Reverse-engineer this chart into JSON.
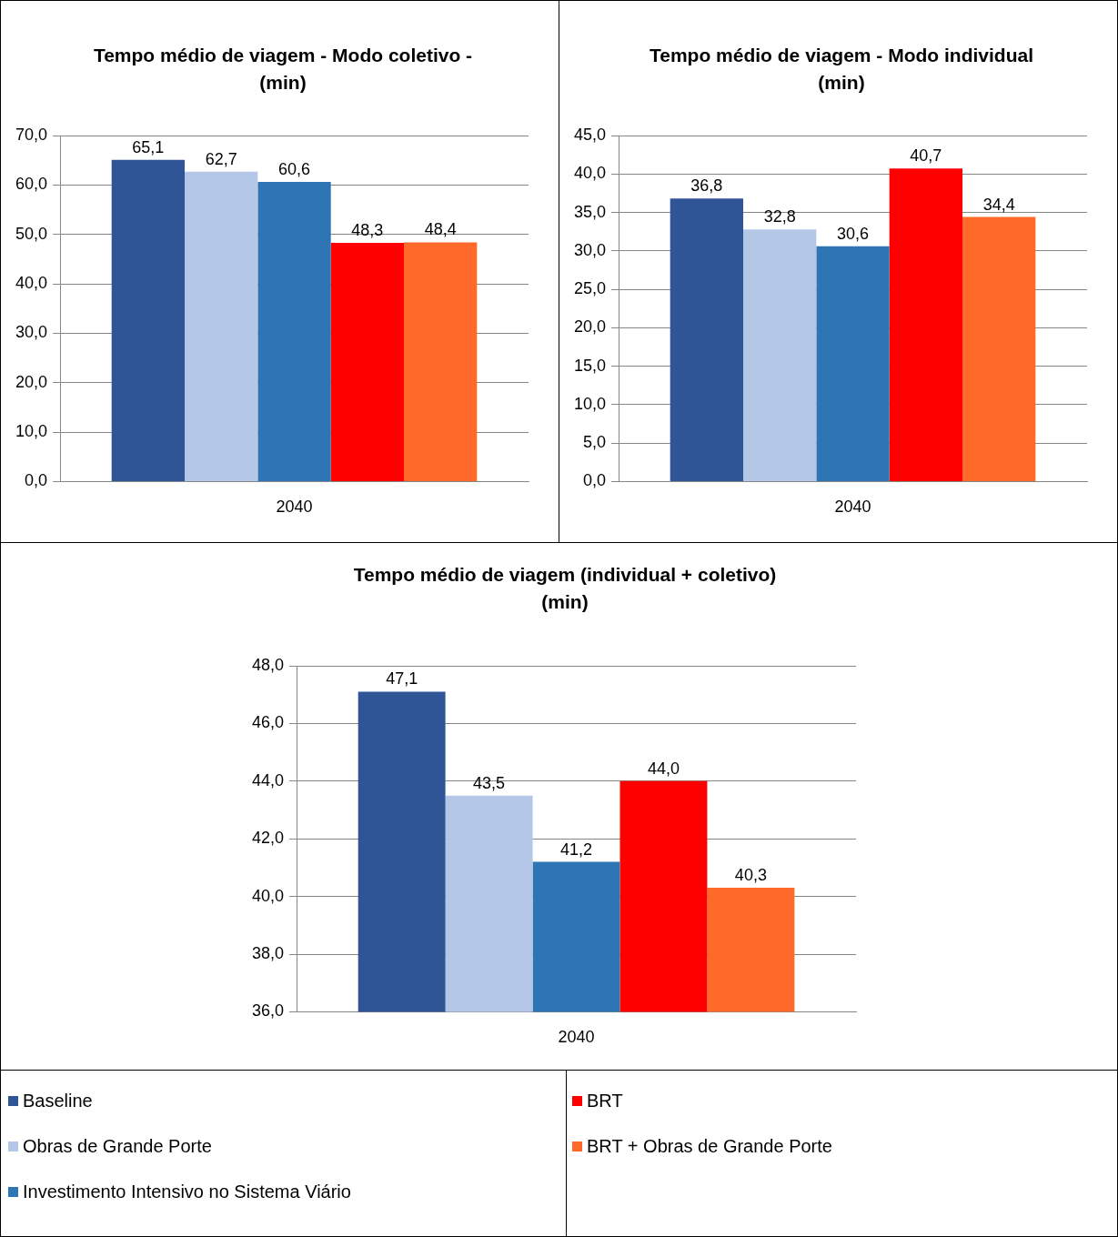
{
  "chart_data": [
    {
      "type": "bar",
      "title": "Tempo médio de viagem - Modo coletivo - (min)",
      "categories": [
        "2040"
      ],
      "series": [
        {
          "color": "#2f5597",
          "values": [
            65.1
          ],
          "value_labels": [
            "65,1"
          ]
        },
        {
          "color": "#b4c7e7",
          "values": [
            62.7
          ],
          "value_labels": [
            "62,7"
          ]
        },
        {
          "color": "#2e75b6",
          "values": [
            60.6
          ],
          "value_labels": [
            "60,6"
          ]
        },
        {
          "color": "#ff0000",
          "values": [
            48.3
          ],
          "value_labels": [
            "48,3"
          ]
        },
        {
          "color": "#ff6a2a",
          "values": [
            48.4
          ],
          "value_labels": [
            "48,4"
          ]
        }
      ],
      "ylim": [
        0,
        70
      ],
      "yticks": [
        {
          "value": 0,
          "label": "0,0"
        },
        {
          "value": 10,
          "label": "10,0"
        },
        {
          "value": 20,
          "label": "20,0"
        },
        {
          "value": 30,
          "label": "30,0"
        },
        {
          "value": 40,
          "label": "40,0"
        },
        {
          "value": 50,
          "label": "50,0"
        },
        {
          "value": 60,
          "label": "60,0"
        },
        {
          "value": 70,
          "label": "70,0"
        }
      ],
      "grid": "y",
      "legend": false
    },
    {
      "type": "bar",
      "title": "Tempo médio de viagem - Modo individual (min)",
      "categories": [
        "2040"
      ],
      "series": [
        {
          "color": "#2f5597",
          "values": [
            36.8
          ],
          "value_labels": [
            "36,8"
          ]
        },
        {
          "color": "#b4c7e7",
          "values": [
            32.8
          ],
          "value_labels": [
            "32,8"
          ]
        },
        {
          "color": "#2e75b6",
          "values": [
            30.6
          ],
          "value_labels": [
            "30,6"
          ]
        },
        {
          "color": "#ff0000",
          "values": [
            40.7
          ],
          "value_labels": [
            "40,7"
          ]
        },
        {
          "color": "#ff6a2a",
          "values": [
            34.4
          ],
          "value_labels": [
            "34,4"
          ]
        }
      ],
      "ylim": [
        0,
        45
      ],
      "yticks": [
        {
          "value": 0,
          "label": "0,0"
        },
        {
          "value": 5,
          "label": "5,0"
        },
        {
          "value": 10,
          "label": "10,0"
        },
        {
          "value": 15,
          "label": "15,0"
        },
        {
          "value": 20,
          "label": "20,0"
        },
        {
          "value": 25,
          "label": "25,0"
        },
        {
          "value": 30,
          "label": "30,0"
        },
        {
          "value": 35,
          "label": "35,0"
        },
        {
          "value": 40,
          "label": "40,0"
        },
        {
          "value": 45,
          "label": "45,0"
        }
      ],
      "grid": "y",
      "legend": false
    },
    {
      "type": "bar",
      "title": "Tempo médio de viagem (individual + coletivo) (min)",
      "categories": [
        "2040"
      ],
      "series": [
        {
          "name": "Baseline",
          "color": "#2f5597",
          "values": [
            47.1
          ],
          "value_labels": [
            "47,1"
          ]
        },
        {
          "name": "Obras de Grande Porte",
          "color": "#b4c7e7",
          "values": [
            43.5
          ],
          "value_labels": [
            "43,5"
          ]
        },
        {
          "name": "Investimento Intensivo no Sistema Viário",
          "color": "#2e75b6",
          "values": [
            41.2
          ],
          "value_labels": [
            "41,2"
          ]
        },
        {
          "name": "BRT",
          "color": "#ff0000",
          "values": [
            44.0
          ],
          "value_labels": [
            "44,0"
          ]
        },
        {
          "name": "BRT + Obras de Grande Porte",
          "color": "#ff6a2a",
          "values": [
            40.3
          ],
          "value_labels": [
            "40,3"
          ]
        }
      ],
      "ylim": [
        36,
        48
      ],
      "yticks": [
        {
          "value": 36,
          "label": "36,0"
        },
        {
          "value": 38,
          "label": "38,0"
        },
        {
          "value": 40,
          "label": "40,0"
        },
        {
          "value": 42,
          "label": "42,0"
        },
        {
          "value": 44,
          "label": "44,0"
        },
        {
          "value": 46,
          "label": "46,0"
        },
        {
          "value": 48,
          "label": "48,0"
        }
      ],
      "grid": "y",
      "legend": "bottom"
    }
  ]
}
